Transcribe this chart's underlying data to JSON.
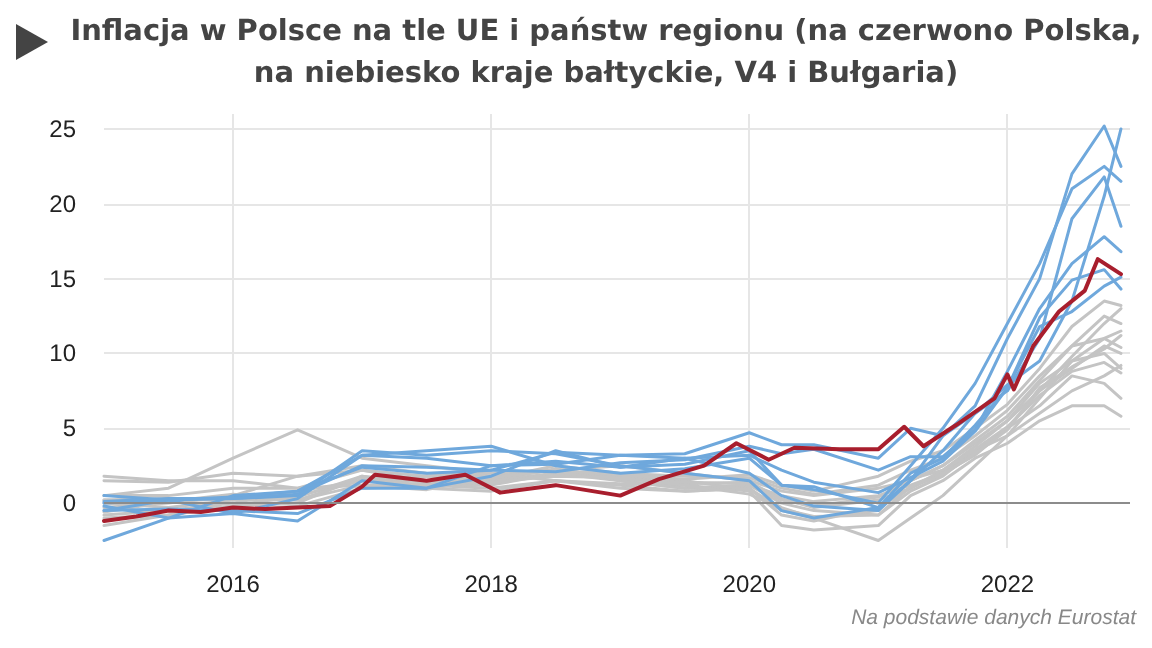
{
  "chart_data": {
    "type": "line",
    "title": "Inflacja w Polsce na tle UE i państw regionu (na czerwono Polska, na niebiesko kraje bałtyckie, V4 i Bułgaria)",
    "annotations": [
      "Na podstawie danych Eurostat"
    ],
    "x": [
      2015,
      2015.5,
      2016,
      2016.5,
      2017,
      2017.5,
      2018,
      2018.5,
      2019,
      2019.5,
      2020,
      2020.25,
      2020.5,
      2021,
      2021.25,
      2021.5,
      2021.75,
      2022,
      2022.25,
      2022.5,
      2022.75,
      2022.88
    ],
    "xlim": [
      2015,
      2022.95
    ],
    "xticks": [
      2016,
      2018,
      2020,
      2022
    ],
    "ylim": [
      -3,
      26
    ],
    "yticks": [
      0,
      5,
      10,
      15,
      20,
      25
    ],
    "grid": true,
    "marker": "none",
    "line_style": "solid",
    "ref_lines": [
      {
        "axis": "y",
        "value": 0,
        "color": "#8c8c8c"
      }
    ],
    "series": [
      {
        "color": "#c4c4c4",
        "values": [
          1.5,
          1.4,
          2.0,
          1.8,
          2.2,
          1.5,
          1.5,
          2.3,
          1.5,
          1.0,
          1.2,
          0.5,
          0.1,
          0.5,
          1.2,
          2.0,
          3.5,
          4.5,
          6.0,
          7.5,
          8.5,
          9.2
        ]
      },
      {
        "color": "#c4c4c4",
        "values": [
          0.5,
          1.0,
          3.0,
          4.9,
          3.0,
          2.5,
          2.0,
          1.5,
          1.0,
          0.8,
          1.0,
          -0.5,
          -1.0,
          -2.5,
          -1.0,
          0.5,
          2.5,
          4.5,
          7.0,
          9.5,
          11.0,
          11.5
        ]
      },
      {
        "color": "#c4c4c4",
        "values": [
          -0.3,
          0.0,
          0.5,
          1.8,
          2.5,
          2.0,
          1.8,
          2.2,
          2.5,
          2.0,
          1.5,
          0.8,
          0.5,
          1.0,
          1.5,
          2.5,
          4.0,
          5.5,
          7.5,
          9.0,
          10.5,
          10.0
        ]
      },
      {
        "color": "#c4c4c4",
        "values": [
          -1.0,
          -0.8,
          -0.2,
          0.5,
          1.5,
          1.5,
          1.5,
          2.0,
          1.5,
          1.0,
          1.2,
          0.0,
          -0.5,
          -0.8,
          0.8,
          1.8,
          3.5,
          5.0,
          7.5,
          9.8,
          12.0,
          13.0
        ]
      },
      {
        "color": "#c4c4c4",
        "values": [
          0.2,
          0.3,
          -0.5,
          -0.2,
          1.0,
          1.2,
          1.0,
          1.5,
          1.2,
          0.8,
          1.0,
          -0.8,
          -1.2,
          -0.3,
          1.0,
          2.2,
          3.8,
          5.5,
          8.0,
          9.5,
          10.0,
          9.0
        ]
      },
      {
        "color": "#c4c4c4",
        "values": [
          -1.5,
          -0.8,
          -0.2,
          0.0,
          1.8,
          1.0,
          0.8,
          1.5,
          1.3,
          1.2,
          0.8,
          -1.5,
          -1.8,
          -1.5,
          0.5,
          1.5,
          3.0,
          4.0,
          5.5,
          6.5,
          6.5,
          5.8
        ]
      },
      {
        "color": "#c4c4c4",
        "values": [
          0.0,
          -0.3,
          0.2,
          0.2,
          1.2,
          1.3,
          1.2,
          2.0,
          1.8,
          1.3,
          1.4,
          0.3,
          -0.3,
          0.2,
          1.0,
          2.0,
          3.2,
          5.0,
          6.5,
          8.5,
          8.0,
          7.0
        ]
      },
      {
        "color": "#c4c4c4",
        "values": [
          0.5,
          0.5,
          1.0,
          1.0,
          2.2,
          1.8,
          1.6,
          2.5,
          2.0,
          1.8,
          1.7,
          1.0,
          0.6,
          1.2,
          2.2,
          3.0,
          4.5,
          6.2,
          8.5,
          10.5,
          12.5,
          12.0
        ]
      },
      {
        "color": "#c4c4c4",
        "values": [
          -0.8,
          -0.5,
          0.0,
          0.8,
          1.5,
          1.8,
          2.0,
          2.2,
          1.8,
          1.5,
          0.9,
          -0.3,
          -1.0,
          -0.5,
          1.5,
          2.5,
          4.2,
          5.8,
          8.2,
          10.5,
          11.0,
          10.4
        ]
      },
      {
        "color": "#c4c4c4",
        "values": [
          0.2,
          0.1,
          0.3,
          0.4,
          1.8,
          1.4,
          1.3,
          2.0,
          1.6,
          1.4,
          1.3,
          0.2,
          -0.2,
          0.4,
          1.6,
          2.2,
          3.6,
          5.1,
          7.2,
          8.8,
          9.4,
          8.7
        ]
      },
      {
        "color": "#c4c4c4",
        "values": [
          -0.6,
          0.1,
          0.6,
          0.2,
          1.6,
          1.2,
          1.4,
          1.8,
          1.7,
          1.2,
          0.6,
          -0.4,
          -0.9,
          -0.8,
          1.1,
          1.9,
          3.3,
          4.9,
          7.7,
          9.1,
          10.3,
          11.2
        ]
      },
      {
        "color": "#c4c4c4",
        "values": [
          1.8,
          1.5,
          1.5,
          1.0,
          1.2,
          0.9,
          1.7,
          2.2,
          1.9,
          1.6,
          1.9,
          1.2,
          0.8,
          1.8,
          2.8,
          3.5,
          5.0,
          6.6,
          9.0,
          11.8,
          13.5,
          13.2
        ]
      },
      {
        "color": "#6fa8dc",
        "values": [
          -0.5,
          0.2,
          0.3,
          0.5,
          3.5,
          3.2,
          3.5,
          3.3,
          2.5,
          2.0,
          1.5,
          -0.5,
          -1.0,
          -0.3,
          1.5,
          4.5,
          6.5,
          11,
          15,
          22,
          25.2,
          22.5
        ]
      },
      {
        "color": "#6fa8dc",
        "values": [
          0,
          0.2,
          0.4,
          0.8,
          2.4,
          2.0,
          2.2,
          3.4,
          3.2,
          3.3,
          4.7,
          3.9,
          3.9,
          3.0,
          5.0,
          4.5,
          6.0,
          7.9,
          9.5,
          13.5,
          20.5,
          25.0
        ]
      },
      {
        "color": "#6fa8dc",
        "values": [
          -0.2,
          -1.0,
          0.5,
          0.8,
          3.2,
          3.5,
          3.8,
          2.5,
          2.0,
          2.3,
          3.0,
          1.2,
          0.9,
          0.0,
          2.5,
          5.0,
          8.0,
          12,
          16,
          21,
          22.5,
          21.5
        ]
      },
      {
        "color": "#6fa8dc",
        "values": [
          0.5,
          0.2,
          -0.7,
          0.3,
          3.2,
          3.0,
          2.5,
          2.6,
          3.2,
          3.0,
          2.0,
          0.5,
          -0.2,
          -0.5,
          1.5,
          3.5,
          6.0,
          7.5,
          11,
          19,
          21.8,
          18.5
        ]
      },
      {
        "color": "#6fa8dc",
        "values": [
          0.1,
          0.3,
          0.3,
          0.6,
          2.5,
          2.4,
          2.2,
          2.1,
          2.7,
          2.9,
          3.8,
          3.3,
          3.6,
          2.2,
          3.1,
          3.1,
          4.9,
          8.8,
          13,
          16,
          17.8,
          16.8
        ]
      },
      {
        "color": "#6fa8dc",
        "values": [
          -0.5,
          -0.4,
          -0.5,
          -0.7,
          1.0,
          1.0,
          2.5,
          2.8,
          2.4,
          3.0,
          3.2,
          2.2,
          1.4,
          0.7,
          1.7,
          2.8,
          4.8,
          7.7,
          11.8,
          12.8,
          14.5,
          15.1
        ]
      },
      {
        "color": "#6fa8dc",
        "values": [
          -2.5,
          -1.0,
          -0.7,
          -1.2,
          1.5,
          1.0,
          1.8,
          3.5,
          2.4,
          2.6,
          3.5,
          1.2,
          1.1,
          -0.3,
          2.0,
          3.0,
          5.2,
          7.7,
          12.4,
          14.9,
          15.6,
          14.3
        ]
      },
      {
        "color": "#a81e2d",
        "x": [
          2015,
          2015.25,
          2015.5,
          2015.75,
          2016,
          2016.25,
          2016.5,
          2016.75,
          2017,
          2017.1,
          2017.5,
          2017.8,
          2018.07,
          2018.5,
          2019,
          2019.3,
          2019.65,
          2019.9,
          2020.15,
          2020.35,
          2020.7,
          2021,
          2021.2,
          2021.35,
          2021.6,
          2021.9,
          2022,
          2022.05,
          2022.2,
          2022.4,
          2022.6,
          2022.7,
          2022.88
        ],
        "values": [
          -1.2,
          -0.9,
          -0.5,
          -0.6,
          -0.3,
          -0.4,
          -0.3,
          -0.2,
          1.1,
          1.9,
          1.5,
          1.9,
          0.7,
          1.2,
          0.5,
          1.6,
          2.5,
          4.0,
          2.9,
          3.7,
          3.6,
          3.6,
          5.1,
          3.8,
          5.2,
          7.0,
          8.6,
          7.6,
          10.5,
          12.8,
          14.2,
          16.3,
          15.3
        ]
      }
    ]
  }
}
